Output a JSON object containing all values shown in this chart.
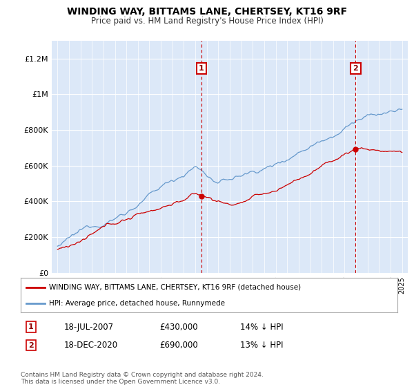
{
  "title": "WINDING WAY, BITTAMS LANE, CHERTSEY, KT16 9RF",
  "subtitle": "Price paid vs. HM Land Registry's House Price Index (HPI)",
  "plot_bg_color": "#dce8f8",
  "ylim": [
    0,
    1300000
  ],
  "yticks": [
    0,
    200000,
    400000,
    600000,
    800000,
    1000000,
    1200000
  ],
  "ytick_labels": [
    "£0",
    "£200K",
    "£400K",
    "£600K",
    "£800K",
    "£1M",
    "£1.2M"
  ],
  "sale1_date": "18-JUL-2007",
  "sale1_price": 430000,
  "sale1_pct": "14%",
  "sale1_label": "1",
  "sale1_x": 2007.54,
  "sale2_date": "18-DEC-2020",
  "sale2_price": 690000,
  "sale2_label": "2",
  "sale2_pct": "13%",
  "sale2_x": 2020.96,
  "hpi_color": "#6699cc",
  "price_color": "#cc0000",
  "vline_color": "#cc0000",
  "legend_label_price": "WINDING WAY, BITTAMS LANE, CHERTSEY, KT16 9RF (detached house)",
  "legend_label_hpi": "HPI: Average price, detached house, Runnymede",
  "footnote": "Contains HM Land Registry data © Crown copyright and database right 2024.\nThis data is licensed under the Open Government Licence v3.0.",
  "xmin": 1994.5,
  "xmax": 2025.5
}
